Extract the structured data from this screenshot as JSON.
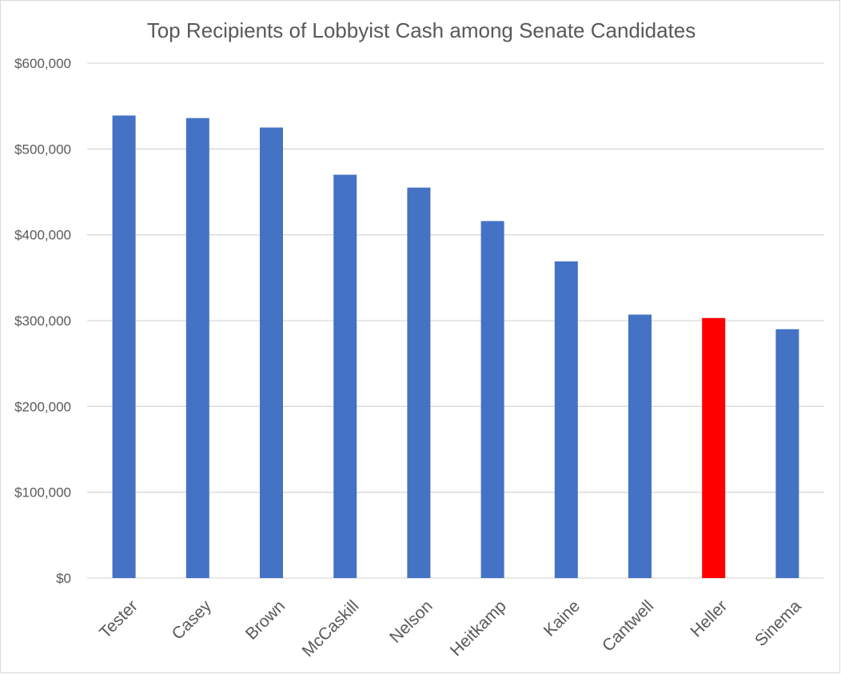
{
  "chart_data": {
    "type": "bar",
    "title": "Top Recipients of Lobbyist Cash among Senate Candidates",
    "xlabel": "",
    "ylabel": "",
    "categories": [
      "Tester",
      "Casey",
      "Brown",
      "McCaskill",
      "Nelson",
      "Heitkamp",
      "Kaine",
      "Cantwell",
      "Heller",
      "Sinema"
    ],
    "values": [
      539000,
      536000,
      525000,
      470000,
      455000,
      416000,
      369000,
      307000,
      303000,
      290000
    ],
    "bar_colors": [
      "#4472C4",
      "#4472C4",
      "#4472C4",
      "#4472C4",
      "#4472C4",
      "#4472C4",
      "#4472C4",
      "#4472C4",
      "#FF0000",
      "#4472C4"
    ],
    "highlight": "Heller",
    "ylim": [
      0,
      600000
    ],
    "y_ticks": [
      0,
      100000,
      200000,
      300000,
      400000,
      500000,
      600000
    ],
    "y_tick_labels": [
      "$0",
      "$100,000",
      "$200,000",
      "$300,000",
      "$400,000",
      "$500,000",
      "$600,000"
    ],
    "grid": true,
    "legend": "none",
    "colors": {
      "bar": "#4472C4",
      "highlight": "#FF0000",
      "grid": "#D9D9D9",
      "text": "#595959"
    }
  }
}
